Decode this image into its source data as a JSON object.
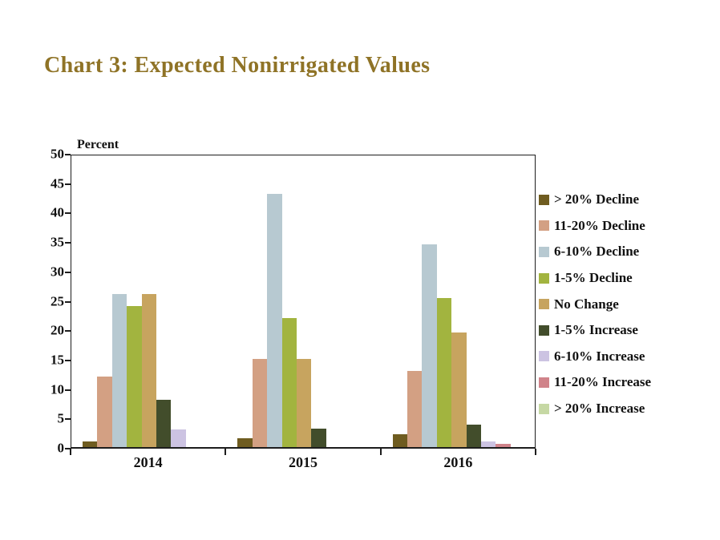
{
  "title": {
    "text": "Chart 3: Expected Nonirrigated Values",
    "color": "#8f7326"
  },
  "chart_data": {
    "type": "bar",
    "title": "Chart 3: Expected Nonirrigated Values",
    "categories": [
      "2014",
      "2015",
      "2016"
    ],
    "series": [
      {
        "name": "> 20% Decline",
        "color": "#6f5c20",
        "values": [
          1,
          1.5,
          2.2
        ]
      },
      {
        "name": "11-20% Decline",
        "color": "#d3a083",
        "values": [
          12,
          15,
          13
        ]
      },
      {
        "name": "6-10% Decline",
        "color": "#b7c9d1",
        "values": [
          26,
          43,
          34.5
        ]
      },
      {
        "name": "1-5% Decline",
        "color": "#a2b43f",
        "values": [
          24,
          22,
          25.3
        ]
      },
      {
        "name": "No Change",
        "color": "#c7a45f",
        "values": [
          26,
          15,
          19.5
        ]
      },
      {
        "name": "1-5% Increase",
        "color": "#424d2b",
        "values": [
          8,
          3.2,
          3.8
        ]
      },
      {
        "name": "6-10% Increase",
        "color": "#ccc3e2",
        "values": [
          3,
          0,
          1
        ]
      },
      {
        "name": "11-20% Increase",
        "color": "#d0838a",
        "values": [
          0,
          0,
          0.5
        ]
      },
      {
        "name": "> 20% Increase",
        "color": "#c6d8a4",
        "values": [
          0,
          0,
          0
        ]
      }
    ],
    "xlabel": "",
    "ylabel": "Percent",
    "ylim": [
      0,
      50
    ],
    "yticks": [
      0,
      5,
      10,
      15,
      20,
      25,
      30,
      35,
      40,
      45,
      50
    ],
    "grid": false,
    "legend_position": "right"
  }
}
